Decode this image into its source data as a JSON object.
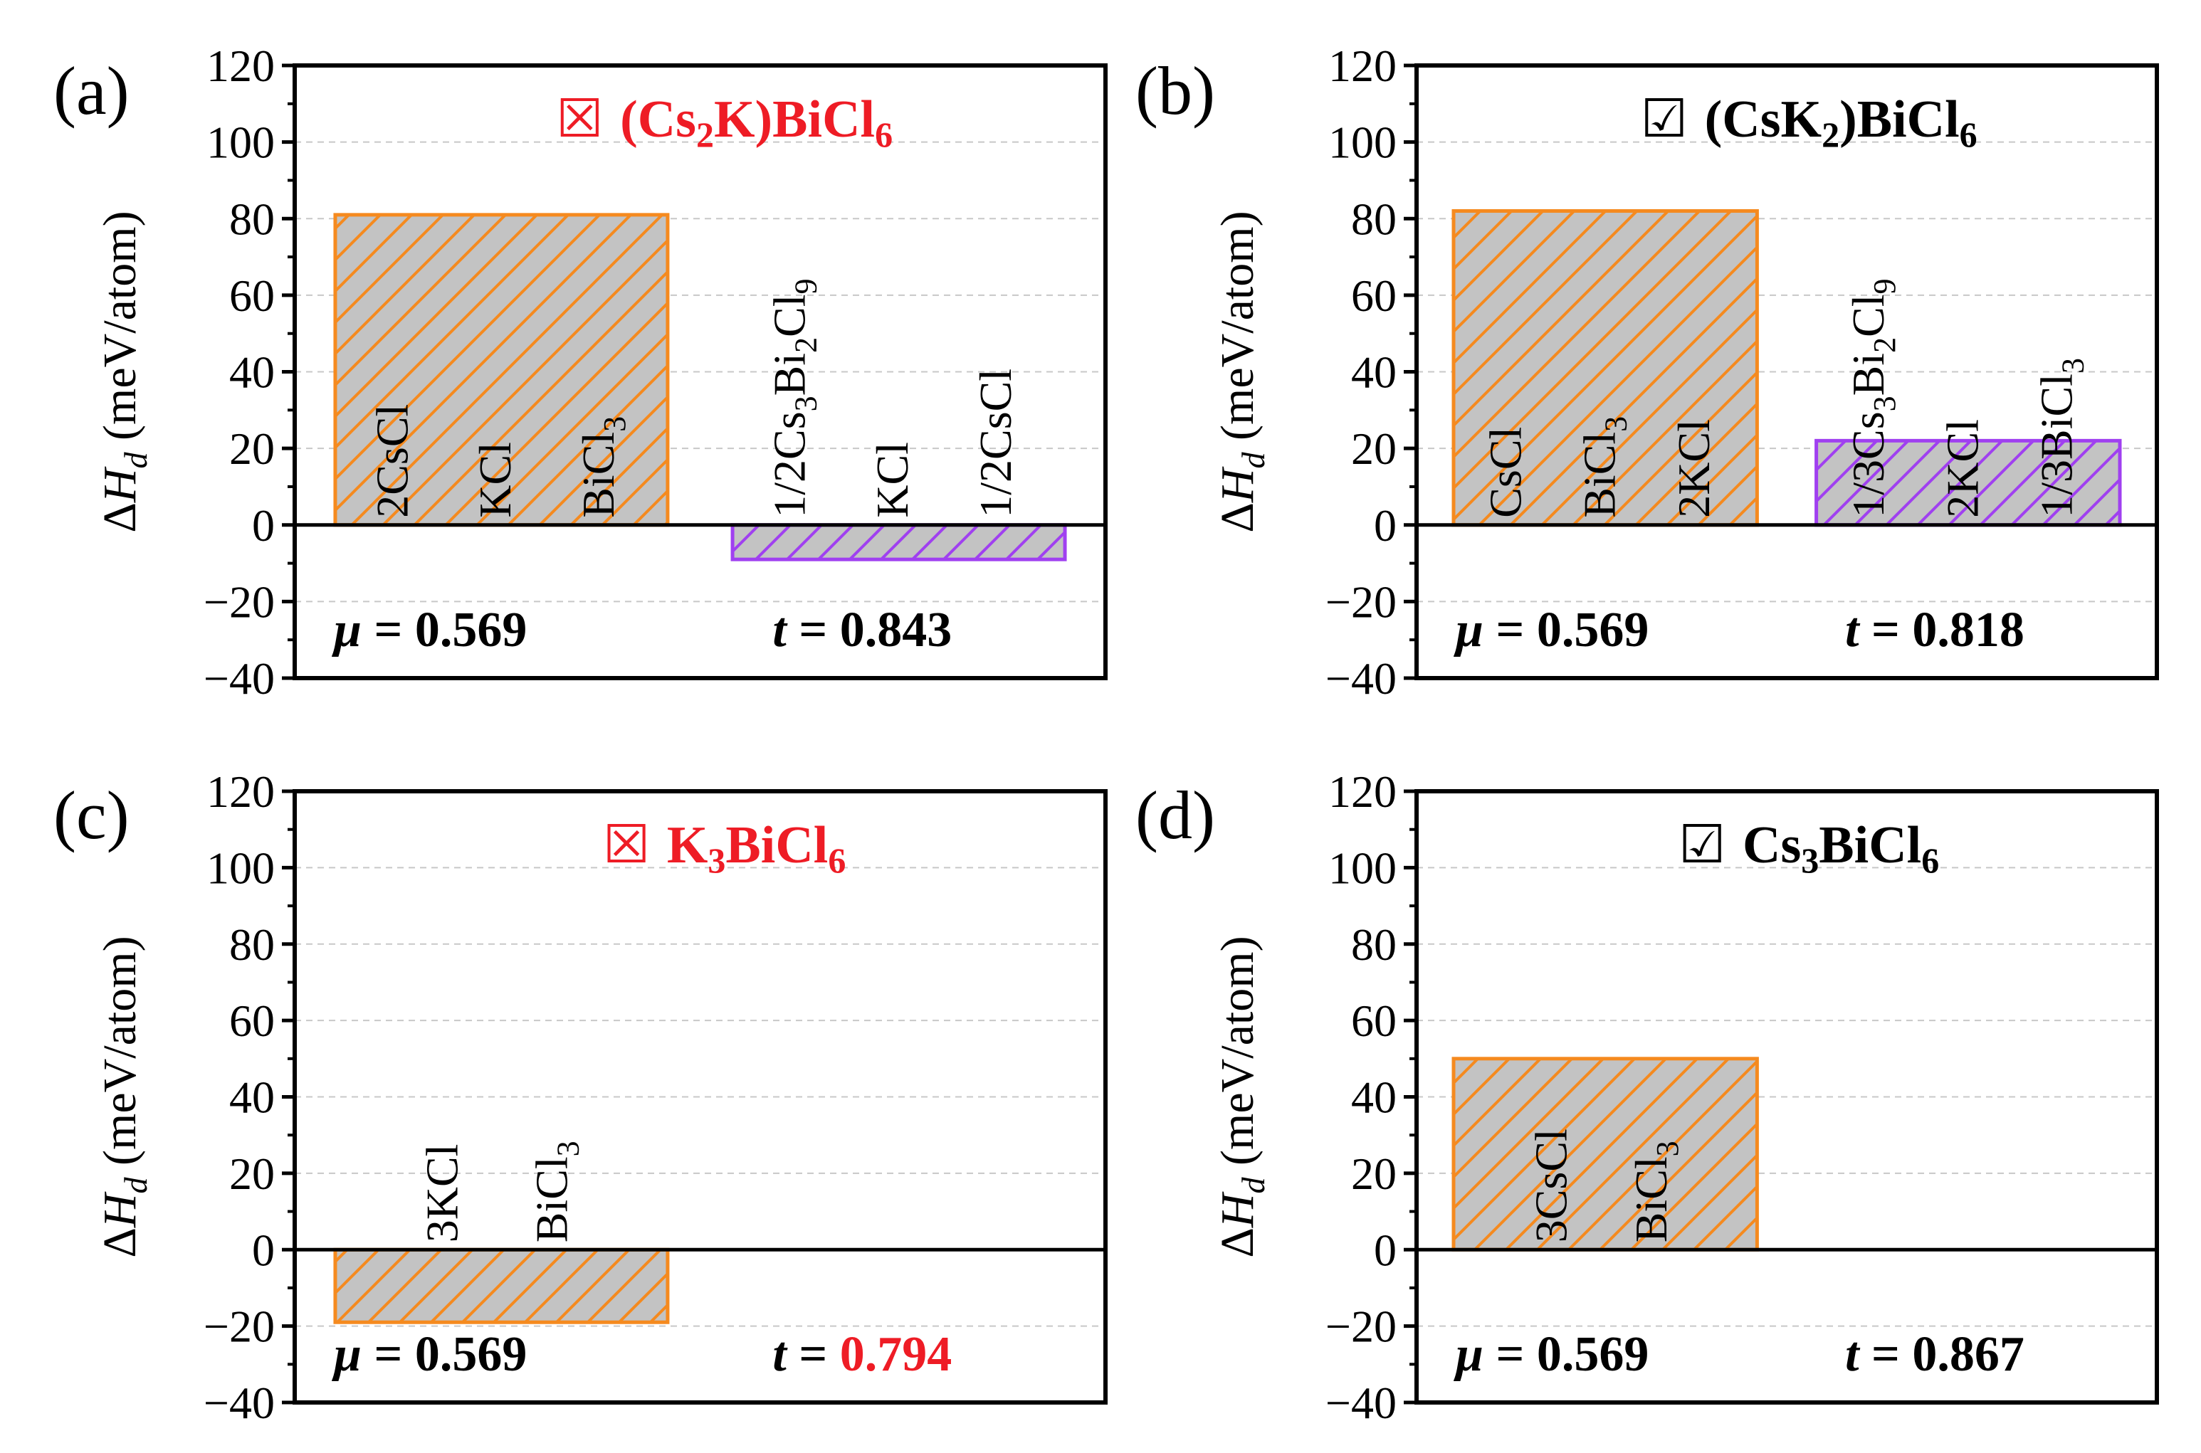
{
  "colors": {
    "bar_fill": "#c3c3c3",
    "orange": "#f58a1f",
    "purple": "#a040f0",
    "red": "#ee1c25",
    "black": "#000000"
  },
  "chart_data": [
    {
      "type": "bar",
      "panel_label": "(a)",
      "title": {
        "mark": "☒",
        "prefix": "(Cs",
        "sub1": "2",
        "middle": "K)BiCl",
        "sub2": "6",
        "color": "red"
      },
      "ylabel": {
        "delta": "Δ",
        "H": "H",
        "sub": "d",
        "rest": " (meV/atom)"
      },
      "ylim": [
        -40,
        120
      ],
      "yticks": [
        "120",
        "100",
        "80",
        "60",
        "40",
        "20",
        "0",
        "−20",
        "−40"
      ],
      "ytick_values": [
        120,
        100,
        80,
        60,
        40,
        20,
        0,
        -20,
        -40
      ],
      "bars": [
        {
          "value": 81,
          "edge": "orange",
          "labels": [
            {
              "text": "2CsCl"
            },
            {
              "text": "KCl"
            },
            {
              "text": "BiCl",
              "sub": "3"
            }
          ]
        },
        {
          "value": -9,
          "edge": "purple",
          "labels": [
            {
              "text": "1/2Cs",
              "sub": "3",
              "text2": "Bi",
              "sub2": "2",
              "text3": "Cl",
              "sub3": "9"
            },
            {
              "text": "KCl"
            },
            {
              "text": "1/2CsCl"
            }
          ]
        }
      ],
      "mu": {
        "symbol": "μ",
        "text": " = 0.569"
      },
      "t": {
        "symbol": "t",
        "eq": " = ",
        "value": "0.843",
        "value_color": "black"
      }
    },
    {
      "type": "bar",
      "panel_label": "(b)",
      "title": {
        "mark": "☑",
        "prefix": "(CsK",
        "sub1": "2",
        "middle": ")BiCl",
        "sub2": "6",
        "color": "black"
      },
      "ylabel": {
        "delta": "Δ",
        "H": "H",
        "sub": "d",
        "rest": " (meV/atom)"
      },
      "ylim": [
        -40,
        120
      ],
      "yticks": [
        "120",
        "100",
        "80",
        "60",
        "40",
        "20",
        "0",
        "−20",
        "−40"
      ],
      "ytick_values": [
        120,
        100,
        80,
        60,
        40,
        20,
        0,
        -20,
        -40
      ],
      "bars": [
        {
          "value": 82,
          "edge": "orange",
          "labels": [
            {
              "text": "CsCl"
            },
            {
              "text": "BiCl",
              "sub": "3"
            },
            {
              "text": "2KCl"
            }
          ]
        },
        {
          "value": 22,
          "edge": "purple",
          "labels": [
            {
              "text": "1/3Cs",
              "sub": "3",
              "text2": "Bi",
              "sub2": "2",
              "text3": "Cl",
              "sub3": "9"
            },
            {
              "text": "2KCl"
            },
            {
              "text": "1/3BiCl",
              "sub": "3"
            }
          ]
        }
      ],
      "mu": {
        "symbol": "μ",
        "text": " = 0.569"
      },
      "t": {
        "symbol": "t",
        "eq": " = ",
        "value": "0.818",
        "value_color": "black"
      }
    },
    {
      "type": "bar",
      "panel_label": "(c)",
      "title": {
        "mark": "☒",
        "prefix": "K",
        "sub1": "3",
        "middle": "BiCl",
        "sub2": "6",
        "color": "red"
      },
      "ylabel": {
        "delta": "Δ",
        "H": "H",
        "sub": "d",
        "rest": " (meV/atom)"
      },
      "ylim": [
        -40,
        120
      ],
      "yticks": [
        "120",
        "100",
        "80",
        "60",
        "40",
        "20",
        "0",
        "−20",
        "−40"
      ],
      "ytick_values": [
        120,
        100,
        80,
        60,
        40,
        20,
        0,
        -20,
        -40
      ],
      "bars": [
        {
          "value": -19,
          "edge": "orange",
          "labels": [
            {
              "text": "3KCl"
            },
            {
              "text": "BiCl",
              "sub": "3"
            }
          ]
        }
      ],
      "mu": {
        "symbol": "μ",
        "text": " = 0.569"
      },
      "t": {
        "symbol": "t",
        "eq": " = ",
        "value": "0.794",
        "value_color": "red"
      }
    },
    {
      "type": "bar",
      "panel_label": "(d)",
      "title": {
        "mark": "☑",
        "prefix": "Cs",
        "sub1": "3",
        "middle": "BiCl",
        "sub2": "6",
        "color": "black"
      },
      "ylabel": {
        "delta": "Δ",
        "H": "H",
        "sub": "d",
        "rest": " (meV/atom)"
      },
      "ylim": [
        -40,
        120
      ],
      "yticks": [
        "120",
        "100",
        "80",
        "60",
        "40",
        "20",
        "0",
        "−20",
        "−40"
      ],
      "ytick_values": [
        120,
        100,
        80,
        60,
        40,
        20,
        0,
        -20,
        -40
      ],
      "bars": [
        {
          "value": 50,
          "edge": "orange",
          "labels": [
            {
              "text": "3CsCl"
            },
            {
              "text": "BiCl",
              "sub": "3"
            }
          ]
        }
      ],
      "mu": {
        "symbol": "μ",
        "text": " = 0.569"
      },
      "t": {
        "symbol": "t",
        "eq": " = ",
        "value": "0.867",
        "value_color": "black"
      }
    }
  ]
}
